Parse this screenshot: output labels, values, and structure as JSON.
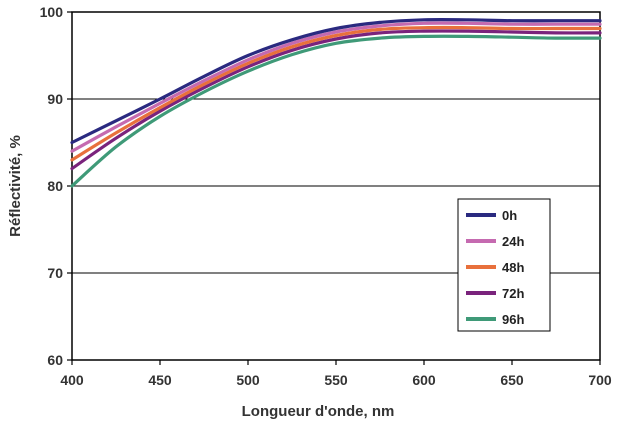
{
  "chart_data": {
    "type": "line",
    "xlabel": "Longueur d'onde, nm",
    "ylabel": "Réflectivité, %",
    "xlim": [
      400,
      700
    ],
    "ylim": [
      60,
      100
    ],
    "xticks": [
      400,
      450,
      500,
      550,
      600,
      650,
      700
    ],
    "yticks": [
      60,
      70,
      80,
      90,
      100
    ],
    "grid": "horizontal",
    "legend_position": "right",
    "x": [
      400,
      425,
      450,
      475,
      500,
      525,
      550,
      575,
      600,
      625,
      650,
      675,
      700
    ],
    "series": [
      {
        "name": "0h",
        "color": "#2a2a80",
        "values": [
          85.0,
          87.5,
          90.0,
          92.6,
          95.0,
          96.8,
          98.1,
          98.8,
          99.1,
          99.1,
          99.0,
          99.0,
          99.0
        ]
      },
      {
        "name": "24h",
        "color": "#c56ab0",
        "values": [
          84.0,
          86.8,
          89.5,
          92.1,
          94.5,
          96.4,
          97.7,
          98.4,
          98.7,
          98.7,
          98.6,
          98.6,
          98.6
        ]
      },
      {
        "name": "48h",
        "color": "#e8703c",
        "values": [
          83.0,
          86.1,
          89.0,
          91.7,
          94.1,
          96.0,
          97.3,
          98.0,
          98.2,
          98.2,
          98.1,
          98.1,
          98.1
        ]
      },
      {
        "name": "72h",
        "color": "#7a237c",
        "values": [
          82.0,
          85.5,
          88.6,
          91.3,
          93.7,
          95.6,
          96.9,
          97.6,
          97.8,
          97.8,
          97.7,
          97.6,
          97.6
        ]
      },
      {
        "name": "96h",
        "color": "#3f9a78",
        "values": [
          80.0,
          84.5,
          88.0,
          90.8,
          93.2,
          95.1,
          96.4,
          97.0,
          97.2,
          97.2,
          97.1,
          97.0,
          97.0
        ]
      }
    ]
  }
}
